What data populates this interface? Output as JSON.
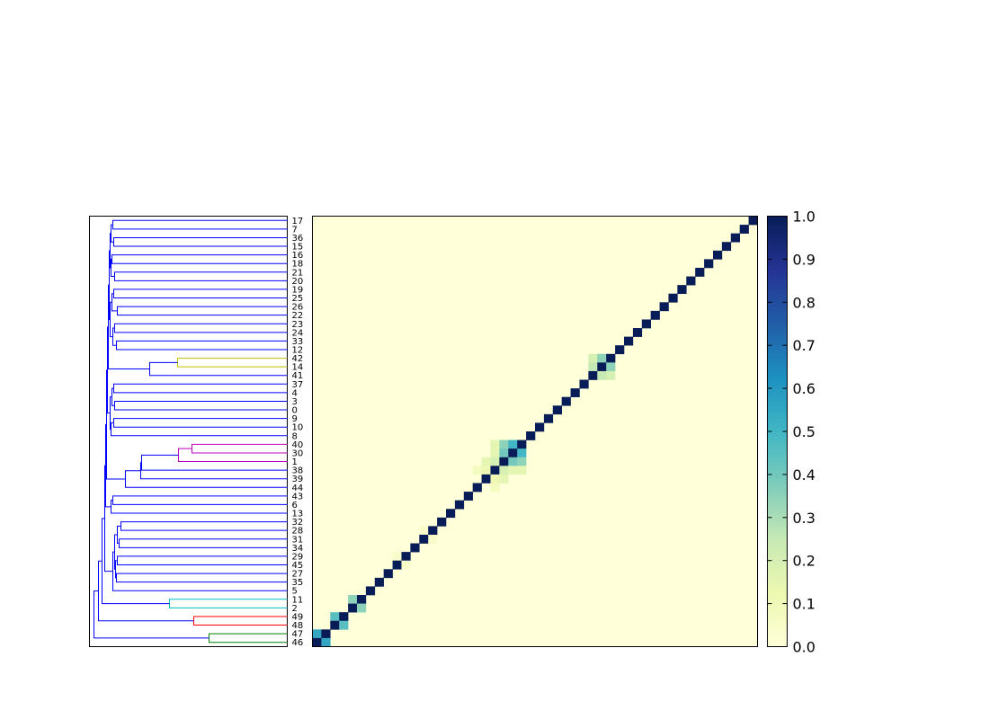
{
  "chart_data": [
    {
      "type": "dendrogram",
      "orientation": "left",
      "leaf_order": [
        "17",
        "7",
        "36",
        "15",
        "16",
        "18",
        "21",
        "20",
        "19",
        "25",
        "26",
        "22",
        "23",
        "24",
        "33",
        "12",
        "42",
        "14",
        "41",
        "37",
        "4",
        "3",
        "0",
        "9",
        "10",
        "8",
        "40",
        "30",
        "1",
        "38",
        "39",
        "44",
        "43",
        "6",
        "13",
        "32",
        "28",
        "31",
        "34",
        "29",
        "45",
        "27",
        "35",
        "5",
        "11",
        "2",
        "49",
        "48",
        "47",
        "46"
      ],
      "cluster_colors": {
        "main": "#0000ff",
        "42-14": "#bfbf00",
        "40-30-1": "#bf00bf",
        "11-2": "#00bfbf",
        "49-48": "#ff0000",
        "47-46": "#008000"
      }
    },
    {
      "type": "heatmap",
      "colormap": "YlGnBu",
      "vmin": 0.0,
      "vmax": 1.0,
      "colorbar_ticks": [
        "0.0",
        "0.1",
        "0.2",
        "0.3",
        "0.4",
        "0.5",
        "0.6",
        "0.7",
        "0.8",
        "0.9",
        "1.0"
      ],
      "diagonal_value": 1.0,
      "background_value": 0.0,
      "highlights": [
        {
          "row": "47",
          "col": "46",
          "value": 0.55
        },
        {
          "row": "46",
          "col": "47",
          "value": 0.55
        },
        {
          "row": "49",
          "col": "48",
          "value": 0.45
        },
        {
          "row": "48",
          "col": "49",
          "value": 0.45
        },
        {
          "row": "11",
          "col": "2",
          "value": 0.35
        },
        {
          "row": "2",
          "col": "11",
          "value": 0.35
        },
        {
          "row": "40",
          "col": "30",
          "value": 0.5
        },
        {
          "row": "30",
          "col": "40",
          "value": 0.5
        },
        {
          "row": "40",
          "col": "1",
          "value": 0.35
        },
        {
          "row": "1",
          "col": "40",
          "value": 0.35
        },
        {
          "row": "30",
          "col": "1",
          "value": 0.4
        },
        {
          "row": "1",
          "col": "30",
          "value": 0.4
        },
        {
          "row": "40",
          "col": "38",
          "value": 0.15
        },
        {
          "row": "38",
          "col": "40",
          "value": 0.15
        },
        {
          "row": "30",
          "col": "38",
          "value": 0.15
        },
        {
          "row": "38",
          "col": "30",
          "value": 0.15
        },
        {
          "row": "1",
          "col": "38",
          "value": 0.2
        },
        {
          "row": "38",
          "col": "1",
          "value": 0.2
        },
        {
          "row": "1",
          "col": "39",
          "value": 0.15
        },
        {
          "row": "39",
          "col": "1",
          "value": 0.15
        },
        {
          "row": "38",
          "col": "39",
          "value": 0.12
        },
        {
          "row": "39",
          "col": "38",
          "value": 0.12
        },
        {
          "row": "38",
          "col": "44",
          "value": 0.08
        },
        {
          "row": "44",
          "col": "38",
          "value": 0.08
        },
        {
          "row": "42",
          "col": "14",
          "value": 0.35
        },
        {
          "row": "14",
          "col": "42",
          "value": 0.35
        },
        {
          "row": "42",
          "col": "41",
          "value": 0.2
        },
        {
          "row": "41",
          "col": "42",
          "value": 0.2
        },
        {
          "row": "14",
          "col": "41",
          "value": 0.25
        },
        {
          "row": "41",
          "col": "14",
          "value": 0.25
        },
        {
          "row": "28",
          "col": "31",
          "value": 0.05
        },
        {
          "row": "31",
          "col": "28",
          "value": 0.05
        },
        {
          "row": "29",
          "col": "45",
          "value": 0.05
        },
        {
          "row": "45",
          "col": "29",
          "value": 0.05
        }
      ]
    }
  ]
}
